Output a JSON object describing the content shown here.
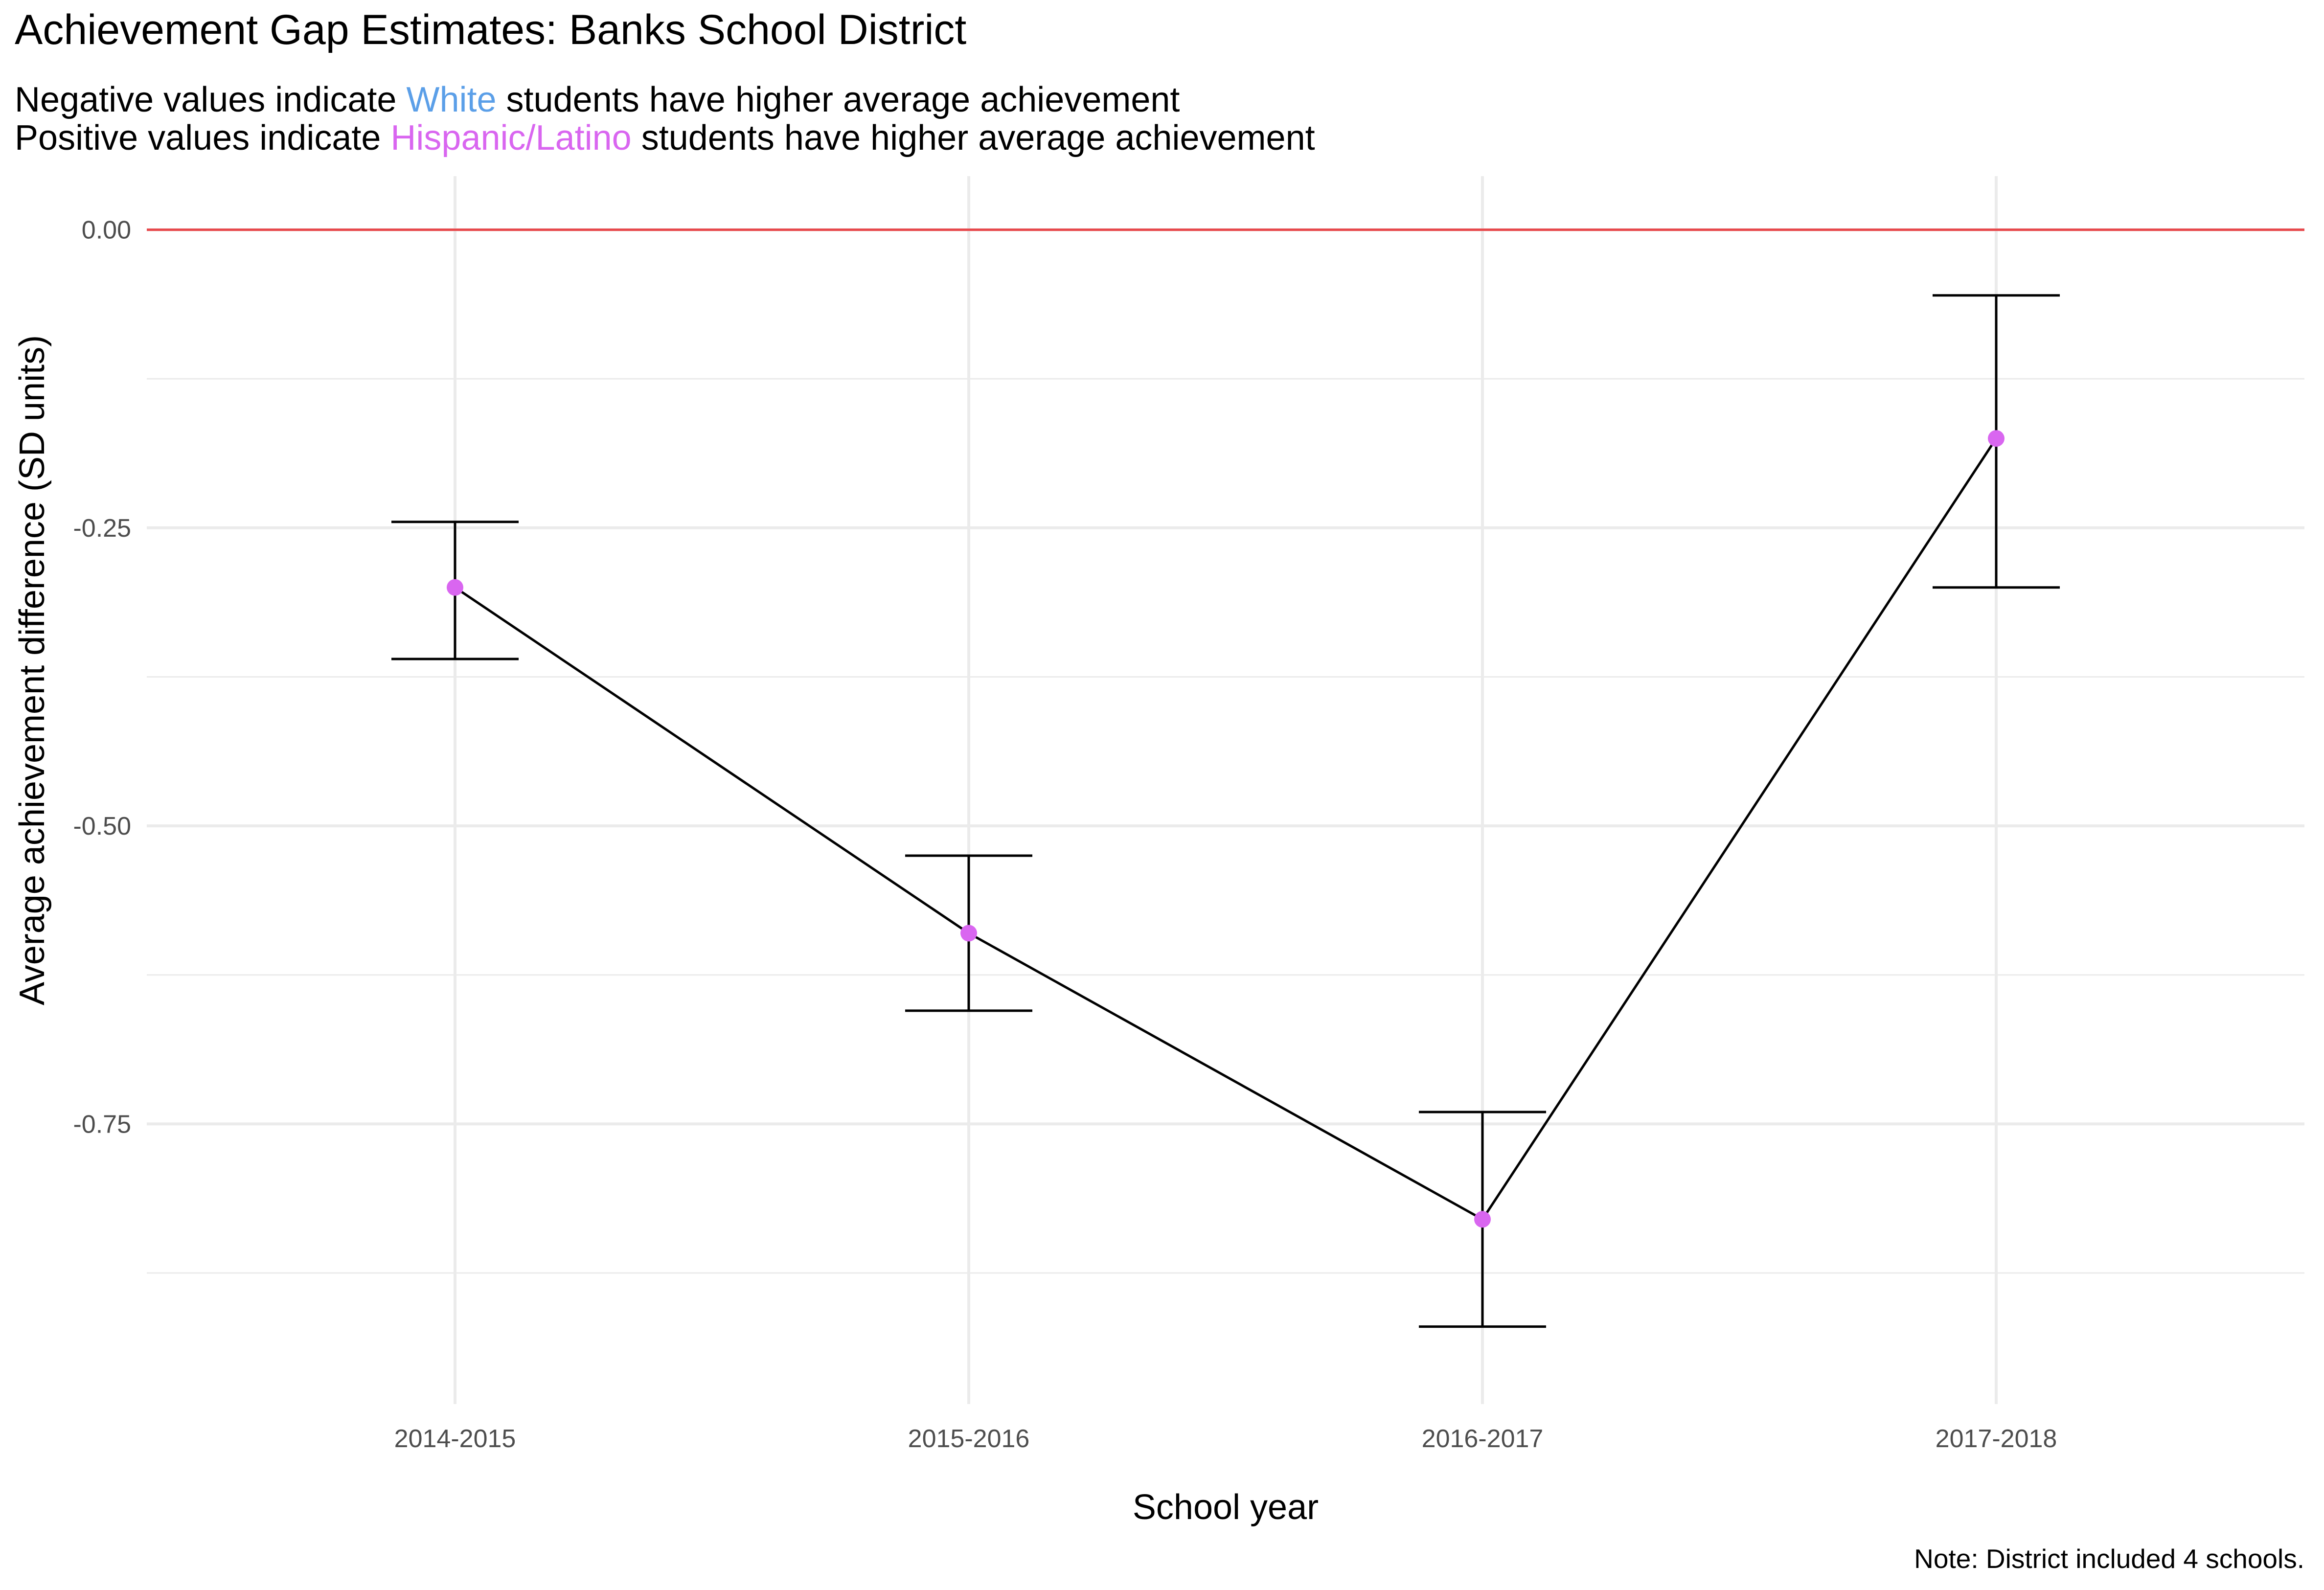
{
  "chart_data": {
    "type": "line",
    "title": "Achievement Gap Estimates: Banks School District",
    "subtitle": {
      "line1": {
        "before": "Negative values indicate ",
        "highlight": "White",
        "after": " students have higher average achievement"
      },
      "line2": {
        "before": "Positive values indicate ",
        "highlight": "Hispanic/Latino",
        "after": " students have higher average achievement"
      }
    },
    "xlabel": "School year",
    "ylabel": "Average achievement difference (SD units)",
    "caption": "Note: District included 4 schools.",
    "categories": [
      "2014-2015",
      "2015-2016",
      "2016-2017",
      "2017-2018"
    ],
    "series": [
      {
        "values": [
          -0.3,
          -0.59,
          -0.83,
          -0.175
        ],
        "lower": [
          -0.36,
          -0.655,
          -0.92,
          -0.3
        ],
        "upper": [
          -0.245,
          -0.525,
          -0.74,
          -0.055
        ]
      }
    ],
    "ylim": [
      -0.985,
      0.045
    ],
    "yticks": [
      0.0,
      -0.25,
      -0.5,
      -0.75
    ],
    "ytick_labels": [
      "0.00",
      "-0.25",
      "-0.50",
      "-0.75"
    ],
    "reference_line": 0.0,
    "grid": true,
    "colors": {
      "white": "#5B9FE8",
      "hispanic": "#D966F0",
      "point": "#D966F0",
      "line": "#000000",
      "reference": "#E8474A",
      "grid": "#EBEBEB"
    }
  }
}
